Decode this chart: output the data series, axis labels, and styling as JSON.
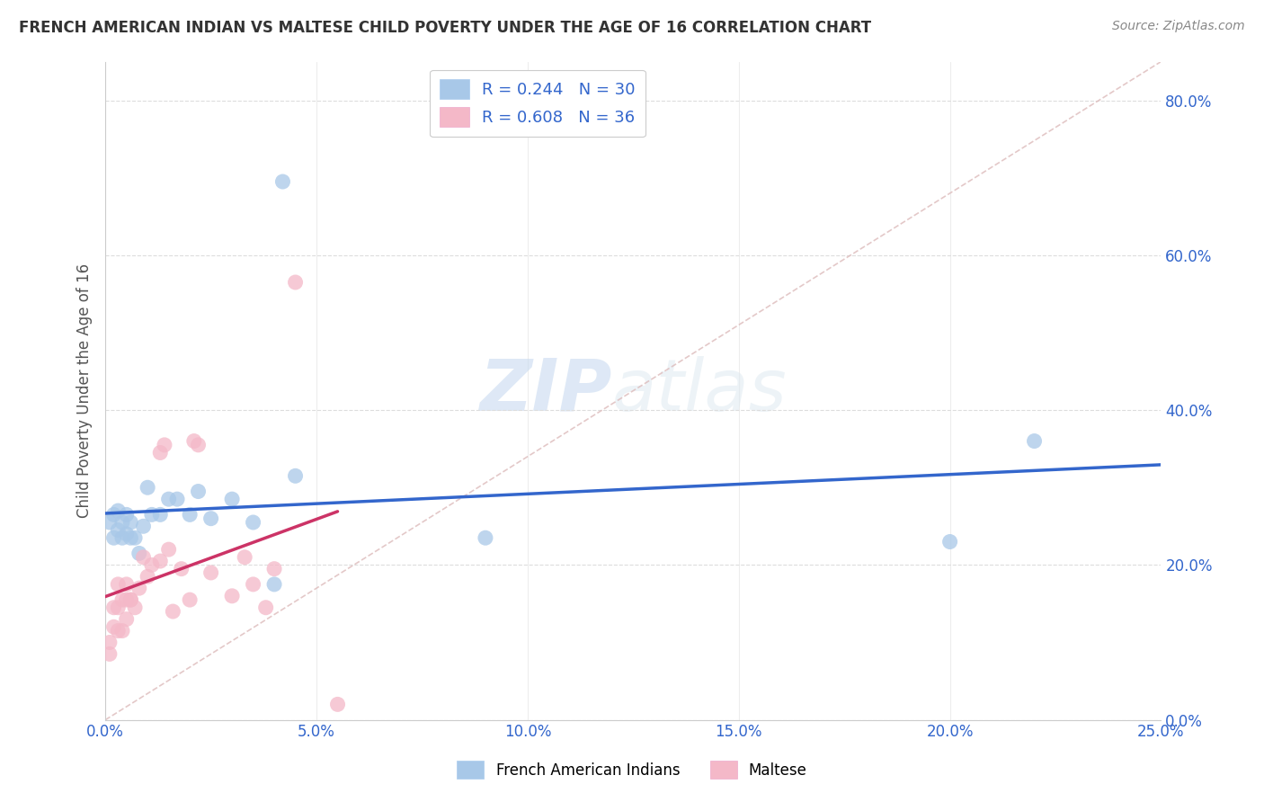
{
  "title": "FRENCH AMERICAN INDIAN VS MALTESE CHILD POVERTY UNDER THE AGE OF 16 CORRELATION CHART",
  "source": "Source: ZipAtlas.com",
  "ylabel": "Child Poverty Under the Age of 16",
  "xlim": [
    0.0,
    0.25
  ],
  "ylim": [
    0.0,
    0.85
  ],
  "xticks": [
    0.0,
    0.05,
    0.1,
    0.15,
    0.2,
    0.25
  ],
  "yticks": [
    0.0,
    0.2,
    0.4,
    0.6,
    0.8
  ],
  "french_R": 0.244,
  "french_N": 30,
  "maltese_R": 0.608,
  "maltese_N": 36,
  "french_color": "#a8c8e8",
  "maltese_color": "#f4b8c8",
  "french_line_color": "#3366cc",
  "maltese_line_color": "#cc3366",
  "diagonal_color": "#ddbbbb",
  "legend_label_french": "French American Indians",
  "legend_label_maltese": "Maltese",
  "watermark_zip": "ZIP",
  "watermark_atlas": "atlas",
  "french_x": [
    0.001,
    0.002,
    0.002,
    0.003,
    0.003,
    0.004,
    0.004,
    0.005,
    0.005,
    0.006,
    0.006,
    0.007,
    0.008,
    0.009,
    0.01,
    0.011,
    0.013,
    0.015,
    0.017,
    0.02,
    0.022,
    0.025,
    0.03,
    0.035,
    0.04,
    0.042,
    0.045,
    0.09,
    0.2,
    0.22
  ],
  "french_y": [
    0.255,
    0.265,
    0.235,
    0.27,
    0.245,
    0.255,
    0.235,
    0.265,
    0.24,
    0.255,
    0.235,
    0.235,
    0.215,
    0.25,
    0.3,
    0.265,
    0.265,
    0.285,
    0.285,
    0.265,
    0.295,
    0.26,
    0.285,
    0.255,
    0.175,
    0.695,
    0.315,
    0.235,
    0.23,
    0.36
  ],
  "maltese_x": [
    0.001,
    0.001,
    0.002,
    0.002,
    0.003,
    0.003,
    0.003,
    0.004,
    0.004,
    0.005,
    0.005,
    0.005,
    0.006,
    0.006,
    0.007,
    0.008,
    0.009,
    0.01,
    0.011,
    0.013,
    0.013,
    0.014,
    0.015,
    0.016,
    0.018,
    0.02,
    0.021,
    0.022,
    0.025,
    0.03,
    0.033,
    0.035,
    0.038,
    0.04,
    0.045,
    0.055
  ],
  "maltese_y": [
    0.1,
    0.085,
    0.12,
    0.145,
    0.115,
    0.145,
    0.175,
    0.155,
    0.115,
    0.175,
    0.155,
    0.13,
    0.155,
    0.155,
    0.145,
    0.17,
    0.21,
    0.185,
    0.2,
    0.205,
    0.345,
    0.355,
    0.22,
    0.14,
    0.195,
    0.155,
    0.36,
    0.355,
    0.19,
    0.16,
    0.21,
    0.175,
    0.145,
    0.195,
    0.565,
    0.02
  ],
  "french_line_x": [
    0.0,
    0.25
  ],
  "maltese_line_x": [
    0.0,
    0.055
  ]
}
